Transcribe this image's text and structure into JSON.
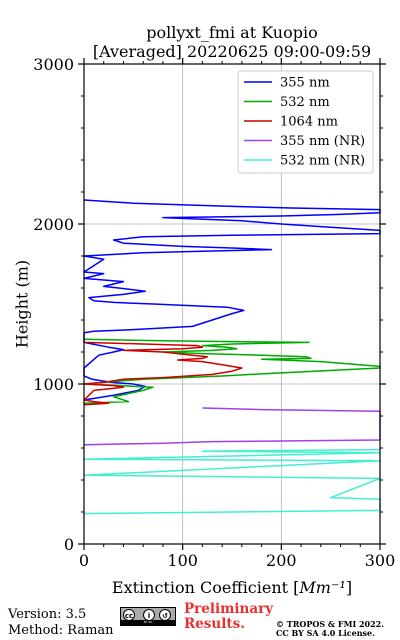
{
  "chart_data": {
    "type": "line",
    "title": "pollyxt_fmi at Kuopio",
    "subtitle": "[Averaged] 20220625 09:00-09:59",
    "xlabel": "Extinction Coefficient [Mm⁻¹]",
    "ylabel": "Height (m)",
    "xlim": [
      0,
      300
    ],
    "ylim": [
      0,
      3000
    ],
    "xticks": [
      0,
      100,
      200,
      300
    ],
    "yticks": [
      0,
      1000,
      2000,
      3000
    ],
    "grid": true,
    "legend_position": "top-right",
    "series": [
      {
        "name": "355 nm",
        "color": "#0000ff",
        "points": [
          [
            0,
            900
          ],
          [
            30,
            930
          ],
          [
            55,
            960
          ],
          [
            62,
            985
          ],
          [
            50,
            1000
          ],
          [
            28,
            1010
          ],
          [
            8,
            1030
          ],
          [
            0,
            1050
          ],
          [
            0,
            1100
          ],
          [
            15,
            1180
          ],
          [
            30,
            1200
          ],
          [
            40,
            1215
          ],
          [
            25,
            1230
          ],
          [
            0,
            1260
          ],
          [
            0,
            1320
          ],
          [
            10,
            1330
          ],
          [
            50,
            1340
          ],
          [
            80,
            1350
          ],
          [
            110,
            1360
          ],
          [
            130,
            1400
          ],
          [
            150,
            1440
          ],
          [
            162,
            1460
          ],
          [
            145,
            1480
          ],
          [
            70,
            1500
          ],
          [
            30,
            1510
          ],
          [
            10,
            1520
          ],
          [
            5,
            1540
          ],
          [
            40,
            1560
          ],
          [
            62,
            1580
          ],
          [
            35,
            1600
          ],
          [
            20,
            1610
          ],
          [
            40,
            1640
          ],
          [
            0,
            1660
          ],
          [
            20,
            1690
          ],
          [
            0,
            1700
          ],
          [
            20,
            1780
          ],
          [
            10,
            1790
          ],
          [
            0,
            1800
          ],
          [
            60,
            1820
          ],
          [
            120,
            1830
          ],
          [
            190,
            1840
          ],
          [
            150,
            1850
          ],
          [
            100,
            1860
          ],
          [
            40,
            1880
          ],
          [
            30,
            1900
          ],
          [
            60,
            1920
          ],
          [
            150,
            1930
          ],
          [
            300,
            1940
          ],
          [
            300,
            1960
          ],
          [
            250,
            1980
          ],
          [
            200,
            2000
          ],
          [
            160,
            2020
          ],
          [
            80,
            2040
          ],
          [
            200,
            2050
          ],
          [
            260,
            2060
          ],
          [
            300,
            2070
          ],
          [
            300,
            2090
          ],
          [
            210,
            2100
          ],
          [
            150,
            2110
          ],
          [
            50,
            2130
          ],
          [
            0,
            2150
          ]
        ]
      },
      {
        "name": "532 nm",
        "color": "#00aa00",
        "points": [
          [
            0,
            880
          ],
          [
            45,
            890
          ],
          [
            30,
            920
          ],
          [
            60,
            960
          ],
          [
            70,
            980
          ],
          [
            0,
            1000
          ],
          [
            20,
            1010
          ],
          [
            60,
            1030
          ],
          [
            100,
            1040
          ],
          [
            140,
            1050
          ],
          [
            170,
            1060
          ],
          [
            300,
            1100
          ],
          [
            300,
            1110
          ],
          [
            240,
            1140
          ],
          [
            200,
            1150
          ],
          [
            180,
            1155
          ],
          [
            230,
            1160
          ],
          [
            225,
            1170
          ],
          [
            180,
            1180
          ],
          [
            120,
            1190
          ],
          [
            80,
            1200
          ],
          [
            130,
            1210
          ],
          [
            155,
            1220
          ],
          [
            145,
            1230
          ],
          [
            120,
            1240
          ],
          [
            150,
            1250
          ],
          [
            228,
            1260
          ],
          [
            150,
            1265
          ],
          [
            80,
            1270
          ],
          [
            0,
            1280
          ]
        ]
      },
      {
        "name": "1064 nm",
        "color": "#cc0000",
        "points": [
          [
            0,
            870
          ],
          [
            25,
            880
          ],
          [
            10,
            890
          ],
          [
            0,
            900
          ],
          [
            10,
            960
          ],
          [
            40,
            980
          ],
          [
            30,
            990
          ],
          [
            0,
            1000
          ],
          [
            20,
            1010
          ],
          [
            40,
            1030
          ],
          [
            80,
            1040
          ],
          [
            130,
            1060
          ],
          [
            150,
            1080
          ],
          [
            160,
            1100
          ],
          [
            140,
            1120
          ],
          [
            120,
            1140
          ],
          [
            95,
            1150
          ],
          [
            120,
            1160
          ],
          [
            125,
            1170
          ],
          [
            110,
            1180
          ],
          [
            80,
            1200
          ],
          [
            40,
            1210
          ],
          [
            100,
            1220
          ],
          [
            120,
            1230
          ],
          [
            115,
            1240
          ],
          [
            60,
            1250
          ],
          [
            0,
            1260
          ]
        ]
      },
      {
        "name": "355 nm (NR)",
        "color": "#a040f0",
        "points": [
          [
            0,
            620
          ],
          [
            80,
            630
          ],
          [
            130,
            640
          ],
          [
            300,
            650
          ],
          [
            300,
            830
          ],
          [
            180,
            840
          ],
          [
            120,
            850
          ]
        ]
      },
      {
        "name": "532 nm (NR)",
        "color": "#40f0d0",
        "points": [
          [
            0,
            190
          ],
          [
            150,
            200
          ],
          [
            300,
            210
          ],
          [
            300,
            280
          ],
          [
            250,
            290
          ],
          [
            300,
            410
          ],
          [
            0,
            430
          ],
          [
            300,
            520
          ],
          [
            0,
            530
          ],
          [
            300,
            570
          ],
          [
            120,
            580
          ],
          [
            300,
            590
          ]
        ]
      }
    ]
  },
  "footer": {
    "version": "Version: 3.5",
    "method": "Method: Raman",
    "preliminary": [
      "Preliminary",
      "Results."
    ],
    "copyright": [
      "© TROPOS & FMI 2022.",
      "CC BY SA 4.0 License."
    ],
    "license_badge": {
      "icons": [
        "cc-icon",
        "by-icon",
        "sa-icon"
      ],
      "text": "BY SA"
    }
  }
}
